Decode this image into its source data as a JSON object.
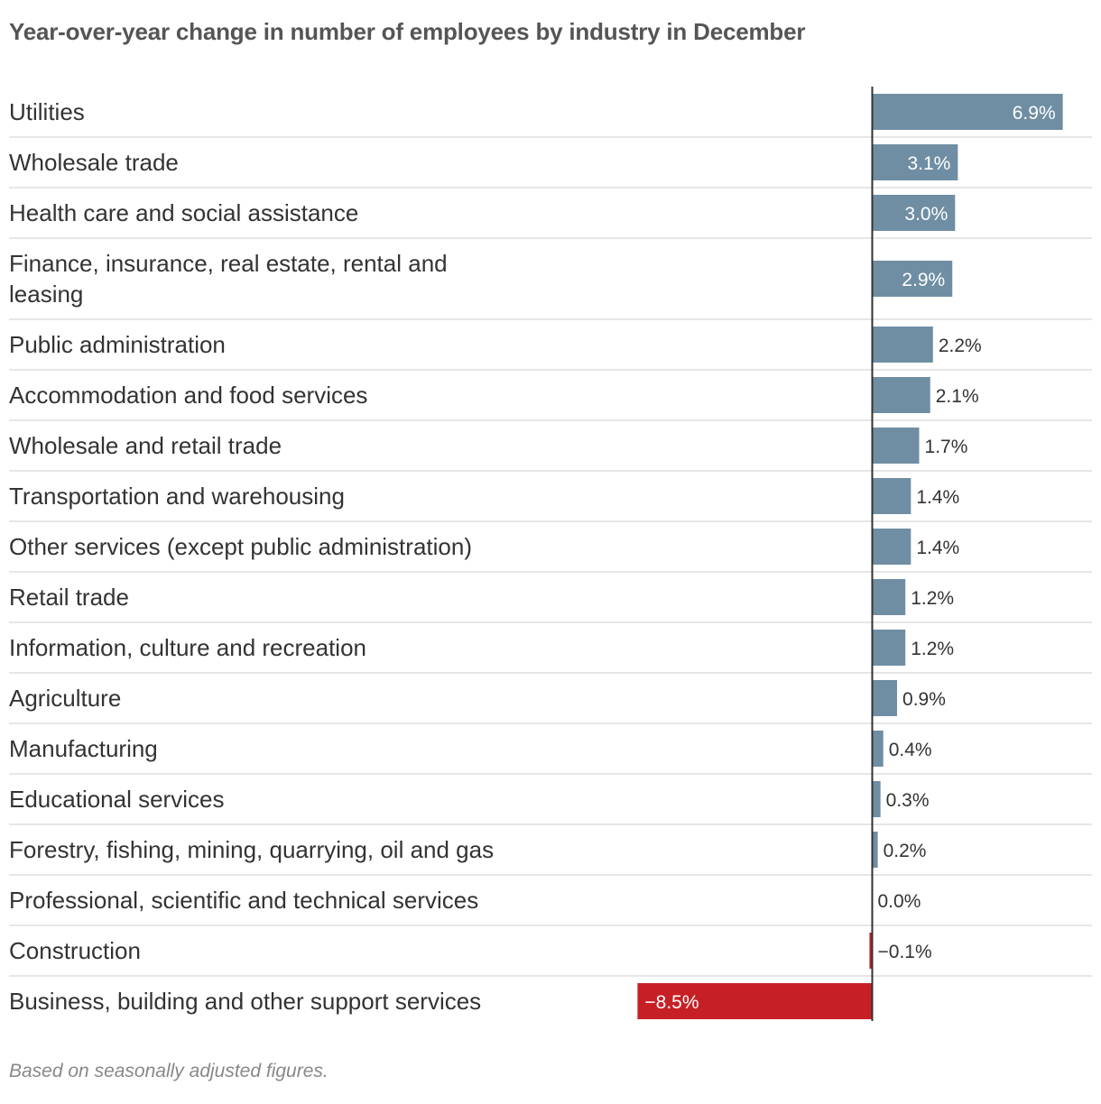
{
  "title": "Year-over-year change in number of employees by industry in December",
  "note": "Based on seasonally adjusted figures.",
  "colors": {
    "positive": "#6f8ea3",
    "negative": "#c62026",
    "axis": "#333333",
    "grid": "#dddddd",
    "inside_text": "#ffffff",
    "outside_text": "#333333"
  },
  "chart_data": {
    "type": "bar",
    "orientation": "horizontal",
    "title": "Year-over-year change in number of employees by industry in December",
    "xlabel": "",
    "ylabel": "",
    "unit": "%",
    "xlim": [
      -8.5,
      7.5
    ],
    "grid": false,
    "categories": [
      "Utilities",
      "Wholesale trade",
      "Health care and social assistance",
      "Finance, insurance, real estate, rental and leasing",
      "Public administration",
      "Accommodation and food services",
      "Wholesale and retail trade",
      "Transportation and warehousing",
      "Other services (except public administration)",
      "Retail trade",
      "Information, culture and recreation",
      "Agriculture",
      "Manufacturing",
      "Educational services",
      "Forestry, fishing, mining, quarrying, oil and gas",
      "Professional, scientific and technical services",
      "Construction",
      "Business, building and other support services"
    ],
    "category_lines": [
      [
        "Utilities"
      ],
      [
        "Wholesale trade"
      ],
      [
        "Health care and social assistance"
      ],
      [
        "Finance, insurance, real estate, rental and",
        "leasing"
      ],
      [
        "Public administration"
      ],
      [
        "Accommodation and food services"
      ],
      [
        "Wholesale and retail trade"
      ],
      [
        "Transportation and warehousing"
      ],
      [
        "Other services (except public administration)"
      ],
      [
        "Retail trade"
      ],
      [
        "Information, culture and recreation"
      ],
      [
        "Agriculture"
      ],
      [
        "Manufacturing"
      ],
      [
        "Educational services"
      ],
      [
        "Forestry, fishing, mining, quarrying, oil and gas"
      ],
      [
        "Professional, scientific and technical services"
      ],
      [
        "Construction"
      ],
      [
        "Business, building and other support services"
      ]
    ],
    "values": [
      6.9,
      3.1,
      3.0,
      2.9,
      2.2,
      2.1,
      1.7,
      1.4,
      1.4,
      1.2,
      1.2,
      0.9,
      0.4,
      0.3,
      0.2,
      0.0,
      -0.1,
      -8.5
    ],
    "value_labels": [
      "6.9%",
      "3.1%",
      "3.0%",
      "2.9%",
      "2.2%",
      "2.1%",
      "1.7%",
      "1.4%",
      "1.4%",
      "1.2%",
      "1.2%",
      "0.9%",
      "0.4%",
      "0.3%",
      "0.2%",
      "0.0%",
      "−0.1%",
      "−8.5%"
    ]
  }
}
